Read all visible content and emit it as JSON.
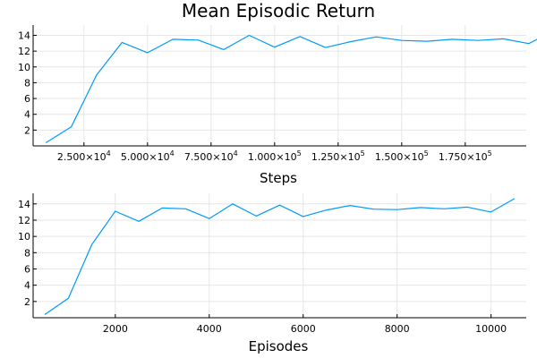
{
  "chart_data": [
    {
      "type": "line",
      "title": "Mean Episodic Return",
      "xlabel": "Steps",
      "ylabel": "",
      "xlim": [
        5000,
        199000
      ],
      "ylim": [
        0.0,
        15.3
      ],
      "grid": true,
      "legend": "none",
      "color": "#009af9",
      "x_ticks": [
        {
          "value": 25000,
          "mantissa": "2.500",
          "exp": "4"
        },
        {
          "value": 50000,
          "mantissa": "5.000",
          "exp": "4"
        },
        {
          "value": 75000,
          "mantissa": "7.500",
          "exp": "4"
        },
        {
          "value": 100000,
          "mantissa": "1.000",
          "exp": "5"
        },
        {
          "value": 125000,
          "mantissa": "1.250",
          "exp": "5"
        },
        {
          "value": 150000,
          "mantissa": "1.500",
          "exp": "5"
        },
        {
          "value": 175000,
          "mantissa": "1.750",
          "exp": "5"
        }
      ],
      "y_ticks": [
        2,
        4,
        6,
        8,
        10,
        12,
        14
      ],
      "x": [
        10000,
        20000,
        30000,
        40000,
        50000,
        60000,
        70000,
        80000,
        90000,
        100000,
        110000,
        120000,
        130000,
        140000,
        150000,
        160000,
        170000,
        180000,
        190000,
        200000,
        210000
      ],
      "y": [
        0.4,
        2.4,
        9.0,
        13.1,
        11.8,
        13.5,
        13.4,
        12.2,
        14.0,
        12.5,
        13.85,
        12.45,
        13.2,
        13.8,
        13.35,
        13.25,
        13.5,
        13.35,
        13.55,
        12.95,
        14.6
      ]
    },
    {
      "type": "line",
      "title": "",
      "xlabel": "Episodes",
      "ylabel": "",
      "xlim": [
        250,
        10750
      ],
      "ylim": [
        0.0,
        15.3
      ],
      "grid": true,
      "legend": "none",
      "color": "#009af9",
      "x_ticks": [
        2000,
        4000,
        6000,
        8000,
        10000
      ],
      "y_ticks": [
        2,
        4,
        6,
        8,
        10,
        12,
        14
      ],
      "x": [
        500,
        1000,
        1500,
        2000,
        2500,
        3000,
        3500,
        4000,
        4500,
        5000,
        5500,
        6000,
        6500,
        7000,
        7500,
        8000,
        8500,
        9000,
        9500,
        10000,
        10500
      ],
      "y": [
        0.4,
        2.4,
        9.0,
        13.1,
        11.85,
        13.5,
        13.4,
        12.2,
        14.0,
        12.5,
        13.85,
        12.45,
        13.25,
        13.8,
        13.35,
        13.3,
        13.55,
        13.4,
        13.6,
        13.0,
        14.65
      ]
    }
  ]
}
